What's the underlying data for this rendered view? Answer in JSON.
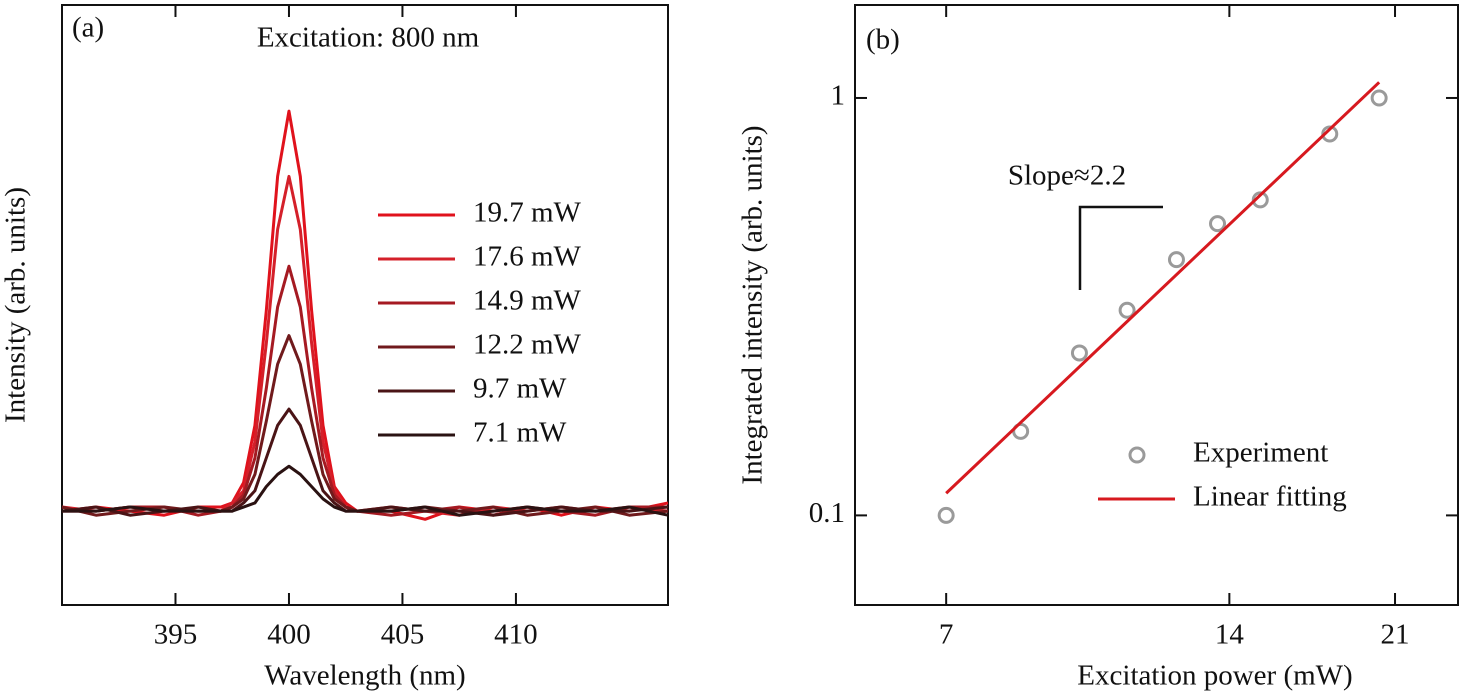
{
  "chart_data": [
    {
      "type": "line",
      "label": "(a)",
      "annotation": "Excitation: 800 nm",
      "x_label": "Wavelength (nm)",
      "y_label": "Intensity (arb. units)",
      "x": [
        390,
        391.5,
        393,
        394.5,
        396,
        397,
        397.5,
        398,
        398.5,
        399,
        399.5,
        400,
        400.5,
        401,
        401.5,
        402,
        402.5,
        403,
        404.5,
        406,
        407.5,
        409,
        410.5,
        412,
        413.5,
        415,
        416.7
      ],
      "xlim": [
        390,
        416.7
      ],
      "xticks": [
        395,
        400,
        405,
        410
      ],
      "ylim": [
        -0.23,
        1.24
      ],
      "legend": "center right",
      "series": [
        {
          "name": "19.7 mW",
          "color": "#e0121c",
          "values": [
            0.0,
            0.01,
            0.0,
            -0.01,
            0.01,
            0.01,
            0.02,
            0.07,
            0.21,
            0.49,
            0.82,
            0.98,
            0.82,
            0.49,
            0.21,
            0.06,
            0.02,
            0.0,
            0.0,
            -0.02,
            0.01,
            0.0,
            0.01,
            -0.01,
            0.01,
            0.0,
            0.02
          ]
        },
        {
          "name": "17.6 mW",
          "color": "#d4202a",
          "values": [
            0.01,
            0.0,
            0.01,
            0.0,
            0.0,
            0.0,
            0.02,
            0.05,
            0.17,
            0.41,
            0.69,
            0.82,
            0.69,
            0.41,
            0.17,
            0.05,
            0.01,
            0.0,
            0.01,
            0.0,
            -0.01,
            0.01,
            0.0,
            0.01,
            0.0,
            0.01,
            0.0
          ]
        },
        {
          "name": "14.9 mW",
          "color": "#a51a22",
          "values": [
            0.0,
            0.0,
            0.01,
            0.01,
            -0.01,
            0.0,
            0.01,
            0.04,
            0.13,
            0.3,
            0.5,
            0.6,
            0.5,
            0.3,
            0.13,
            0.04,
            0.01,
            0.0,
            -0.01,
            0.0,
            0.01,
            -0.01,
            0.01,
            0.0,
            -0.01,
            0.01,
            0.01
          ]
        },
        {
          "name": "12.2 mW",
          "color": "#701a1c",
          "values": [
            0.01,
            -0.01,
            0.0,
            0.01,
            0.0,
            0.0,
            0.01,
            0.03,
            0.09,
            0.22,
            0.36,
            0.43,
            0.36,
            0.22,
            0.09,
            0.03,
            0.01,
            0.0,
            0.0,
            0.01,
            0.0,
            0.01,
            -0.01,
            0.0,
            0.01,
            -0.01,
            0.0
          ]
        },
        {
          "name": "9.7 mW",
          "color": "#4a1416",
          "values": [
            0.0,
            0.01,
            -0.01,
            0.0,
            0.01,
            0.0,
            0.0,
            0.02,
            0.05,
            0.13,
            0.21,
            0.25,
            0.21,
            0.13,
            0.05,
            0.02,
            0.0,
            0.0,
            0.01,
            0.0,
            0.0,
            -0.01,
            0.0,
            0.01,
            0.0,
            0.0,
            0.01
          ]
        },
        {
          "name": "7.1 mW",
          "color": "#2a1212",
          "values": [
            0.0,
            0.0,
            0.01,
            0.0,
            0.0,
            0.0,
            0.0,
            0.01,
            0.02,
            0.06,
            0.09,
            0.11,
            0.09,
            0.06,
            0.03,
            0.01,
            0.0,
            0.0,
            0.0,
            0.01,
            -0.01,
            0.0,
            0.01,
            0.0,
            0.0,
            0.01,
            -0.01
          ]
        }
      ]
    },
    {
      "type": "scatter",
      "label": "(b)",
      "annotation": "Slope≈2.2",
      "x_label": "Excitation power (mW)",
      "y_label": "Integrated intensity (arb. units)",
      "xscale": "log",
      "yscale": "log",
      "xlim": [
        5.6,
        24.5
      ],
      "xticks": [
        7,
        14,
        21
      ],
      "ylim": [
        0.061,
        1.67
      ],
      "yticks": [
        0.1,
        1
      ],
      "legend": "lower right",
      "series": [
        {
          "name": "Experiment",
          "type": "scatter",
          "color": "#9a9a9a",
          "x": [
            7,
            8.4,
            9.7,
            10.9,
            12.3,
            13.6,
            15.1,
            17.9,
            20.2
          ],
          "values": [
            0.1,
            0.159,
            0.245,
            0.31,
            0.41,
            0.5,
            0.57,
            0.82,
            1
          ]
        },
        {
          "name": "Linear fitting",
          "type": "line",
          "color": "#d7191f",
          "x": [
            7,
            20.2
          ],
          "values": [
            0.113,
            1.09
          ]
        }
      ]
    }
  ]
}
